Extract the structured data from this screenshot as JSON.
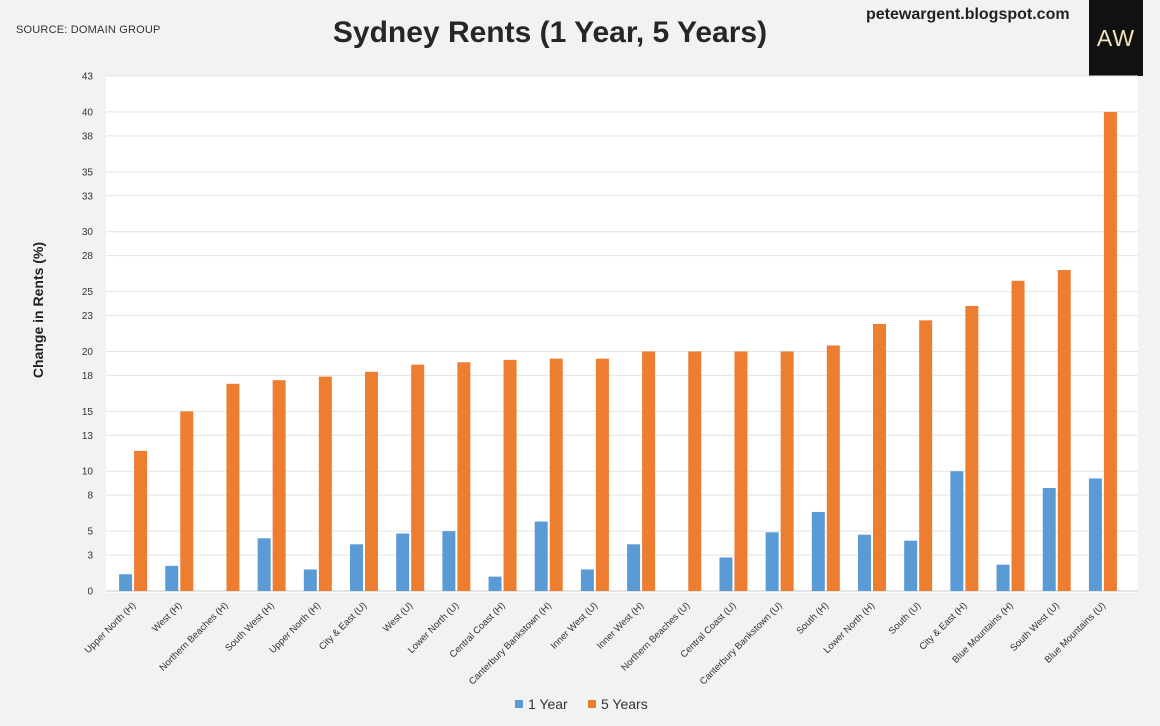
{
  "header": {
    "source": "SOURCE: DOMAIN GROUP",
    "title": "Sydney Rents (1 Year, 5 Years)",
    "blog": "petewargent.blogspot.com",
    "logo_text": "AW"
  },
  "chart_data": {
    "type": "bar",
    "title": "Sydney Rents (1 Year, 5 Years)",
    "ylabel": "Change in Rents (%)",
    "xlabel": "",
    "ylim": [
      0,
      43
    ],
    "yticks": [
      0,
      3,
      5,
      8,
      10,
      13,
      15,
      18,
      20,
      23,
      25,
      28,
      30,
      33,
      35,
      38,
      40,
      43
    ],
    "grid": true,
    "legend": "bottom",
    "categories": [
      "Upper North (H)",
      "West (H)",
      "Northern Beaches (H)",
      "South West (H)",
      "Upper North (H)",
      "City & East (U)",
      "West (U)",
      "Lower North (U)",
      "Central Coast (H)",
      "Canterbury Bankstown (H)",
      "Inner West (U)",
      "Inner West (H)",
      "Northern Beaches (U)",
      "Central Coast (U)",
      "Canterbury Bankstown (U)",
      "South (H)",
      "Lower North (H)",
      "South (U)",
      "City & East (H)",
      "Blue Mountains (H)",
      "South West (U)",
      "Blue Mountains (U)"
    ],
    "series": [
      {
        "name": "1 Year",
        "color": "#5b9bd5",
        "values": [
          1.4,
          2.1,
          0,
          4.4,
          1.8,
          3.9,
          4.8,
          5.0,
          1.2,
          5.8,
          1.8,
          3.9,
          0,
          2.8,
          4.9,
          6.6,
          4.7,
          4.2,
          10.0,
          2.2,
          8.6,
          9.4
        ]
      },
      {
        "name": "5 Years",
        "color": "#ed7d31",
        "values": [
          11.7,
          15.0,
          17.3,
          17.6,
          17.9,
          18.3,
          18.9,
          19.1,
          19.3,
          19.4,
          19.4,
          20.0,
          20.0,
          20.0,
          20.0,
          20.5,
          22.3,
          22.6,
          23.8,
          25.9,
          26.8,
          40.0
        ]
      }
    ]
  }
}
